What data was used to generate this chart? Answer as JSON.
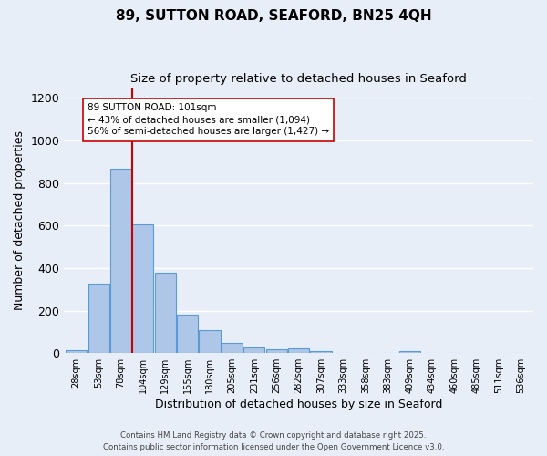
{
  "title": "89, SUTTON ROAD, SEAFORD, BN25 4QH",
  "subtitle": "Size of property relative to detached houses in Seaford",
  "xlabel": "Distribution of detached houses by size in Seaford",
  "ylabel": "Number of detached properties",
  "categories": [
    "28sqm",
    "53sqm",
    "78sqm",
    "104sqm",
    "129sqm",
    "155sqm",
    "180sqm",
    "205sqm",
    "231sqm",
    "256sqm",
    "282sqm",
    "307sqm",
    "333sqm",
    "358sqm",
    "383sqm",
    "409sqm",
    "434sqm",
    "460sqm",
    "485sqm",
    "511sqm",
    "536sqm"
  ],
  "values": [
    15,
    325,
    868,
    605,
    378,
    183,
    107,
    46,
    25,
    17,
    24,
    8,
    0,
    0,
    0,
    10,
    0,
    0,
    0,
    0,
    0
  ],
  "bar_color": "#aec6e8",
  "bar_edge_color": "#5b9bd5",
  "background_color": "#e8eef8",
  "grid_color": "#ffffff",
  "vline_color": "#cc0000",
  "annotation_text": "89 SUTTON ROAD: 101sqm\n← 43% of detached houses are smaller (1,094)\n56% of semi-detached houses are larger (1,427) →",
  "annotation_box_color": "#ffffff",
  "annotation_box_edge": "#cc0000",
  "ylim": [
    0,
    1250
  ],
  "yticks": [
    0,
    200,
    400,
    600,
    800,
    1000,
    1200
  ],
  "footer_line1": "Contains HM Land Registry data © Crown copyright and database right 2025.",
  "footer_line2": "Contains public sector information licensed under the Open Government Licence v3.0."
}
